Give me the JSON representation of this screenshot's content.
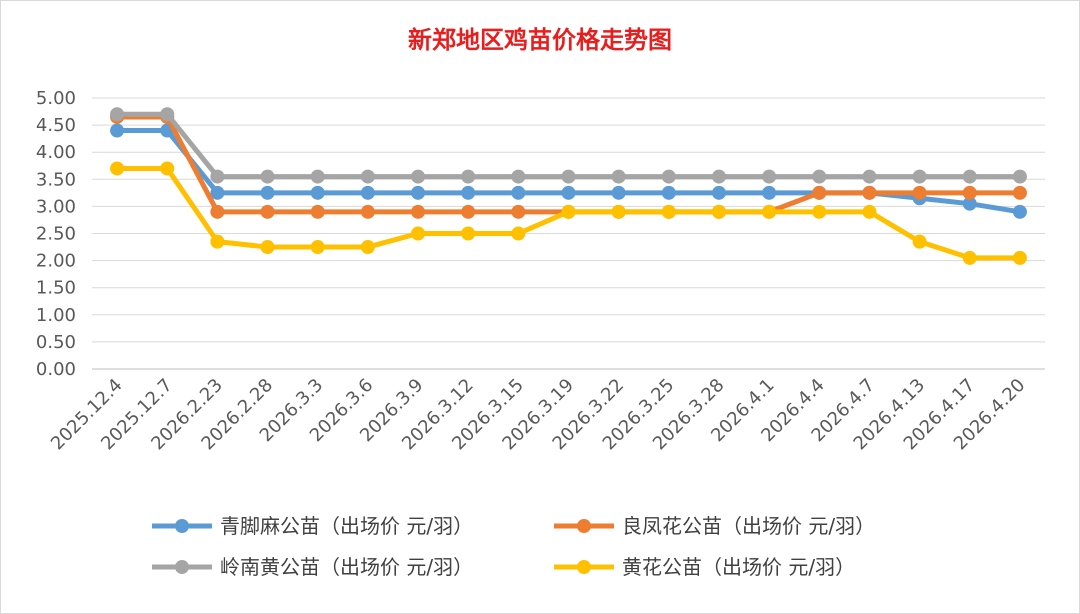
{
  "chart_data": {
    "type": "line",
    "title": "新郑地区鸡苗价格走势图",
    "xlabel": "",
    "ylabel": "",
    "ylim": [
      0,
      5
    ],
    "yticks": [
      "0.00",
      "0.50",
      "1.00",
      "1.50",
      "2.00",
      "2.50",
      "3.00",
      "3.50",
      "4.00",
      "4.50",
      "5.00"
    ],
    "grid": true,
    "legend_position": "bottom",
    "categories": [
      "2025.12.4",
      "2025.12.7",
      "2026.2.23",
      "2026.2.28",
      "2026.3.3",
      "2026.3.6",
      "2026.3.9",
      "2026.3.12",
      "2026.3.15",
      "2026.3.19",
      "2026.3.22",
      "2026.3.25",
      "2026.3.28",
      "2026.4.1",
      "2026.4.4",
      "2026.4.7",
      "2026.4.13",
      "2026.4.17",
      "2026.4.20"
    ],
    "series": [
      {
        "name": "青脚麻公苗（出场价 元/羽）",
        "color": "#5b9bd5",
        "values": [
          4.4,
          4.4,
          3.25,
          3.25,
          3.25,
          3.25,
          3.25,
          3.25,
          3.25,
          3.25,
          3.25,
          3.25,
          3.25,
          3.25,
          3.25,
          3.25,
          3.15,
          3.05,
          2.9
        ]
      },
      {
        "name": "良凤花公苗（出场价 元/羽）",
        "color": "#ed7d31",
        "values": [
          4.65,
          4.65,
          2.9,
          2.9,
          2.9,
          2.9,
          2.9,
          2.9,
          2.9,
          2.9,
          2.9,
          2.9,
          2.9,
          2.9,
          3.25,
          3.25,
          3.25,
          3.25,
          3.25
        ]
      },
      {
        "name": "岭南黄公苗（出场价 元/羽）",
        "color": "#a5a5a5",
        "values": [
          4.7,
          4.7,
          3.55,
          3.55,
          3.55,
          3.55,
          3.55,
          3.55,
          3.55,
          3.55,
          3.55,
          3.55,
          3.55,
          3.55,
          3.55,
          3.55,
          3.55,
          3.55,
          3.55
        ]
      },
      {
        "name": "黄花公苗（出场价 元/羽）",
        "color": "#ffc000",
        "values": [
          3.7,
          3.7,
          2.35,
          2.25,
          2.25,
          2.25,
          2.5,
          2.5,
          2.5,
          2.9,
          2.9,
          2.9,
          2.9,
          2.9,
          2.9,
          2.9,
          2.35,
          2.05,
          2.05
        ]
      }
    ]
  }
}
